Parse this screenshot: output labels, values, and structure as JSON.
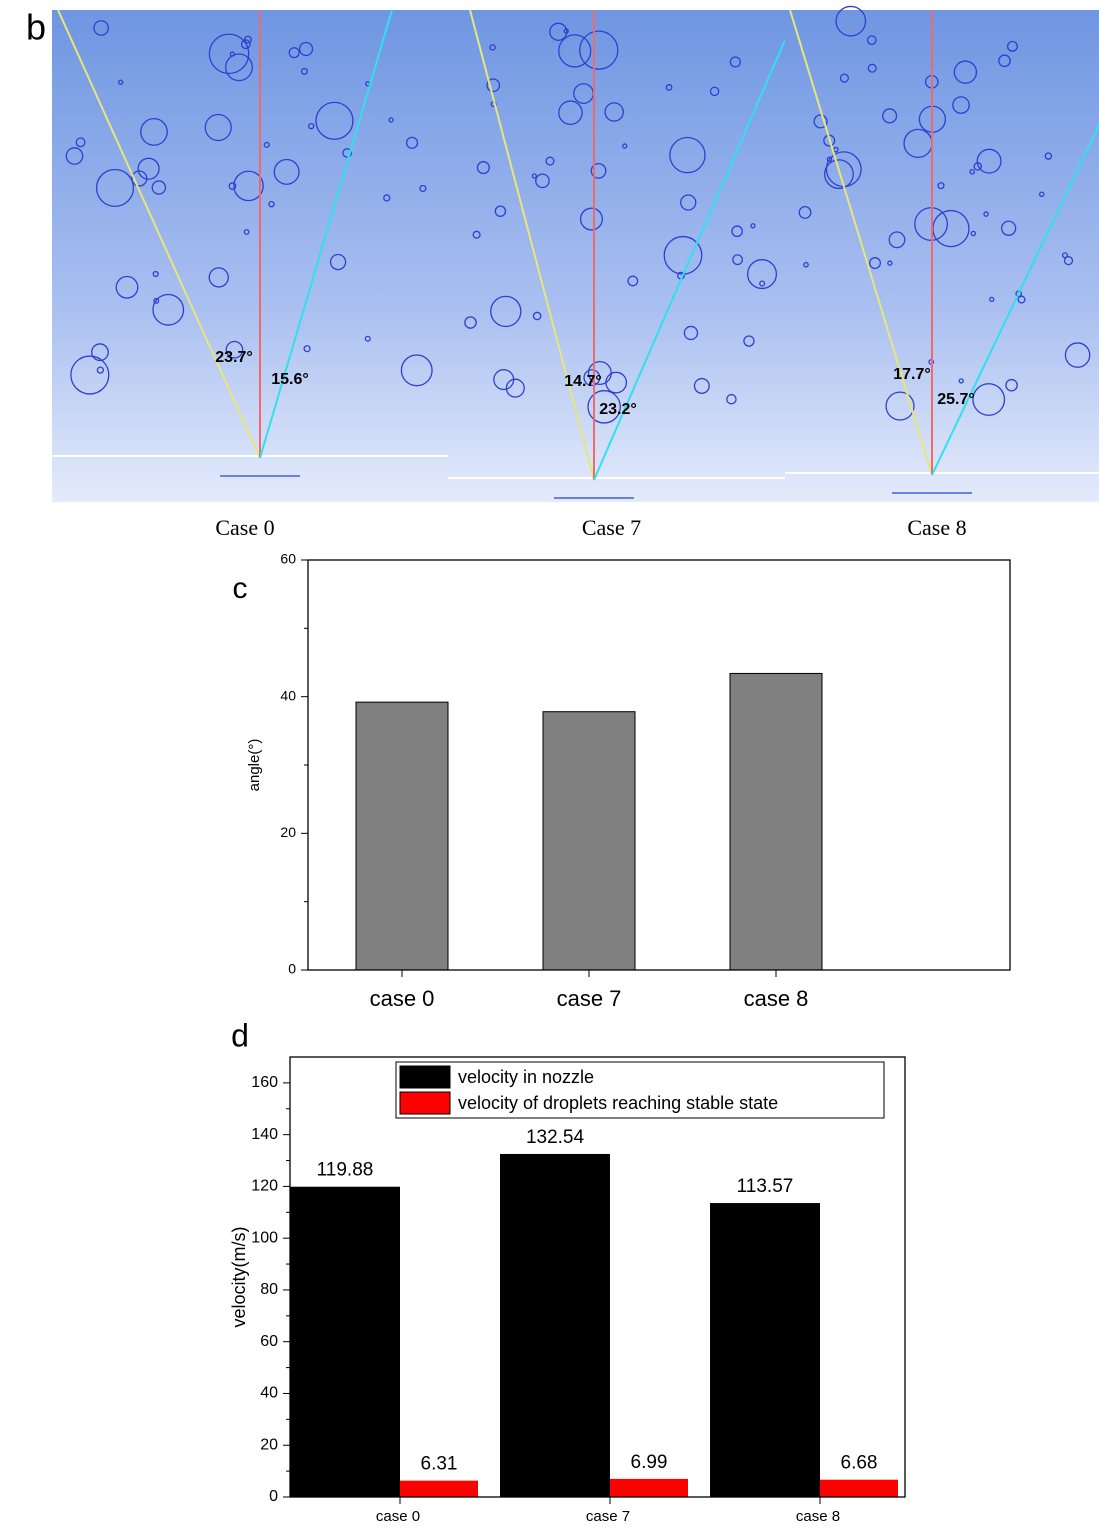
{
  "panel_b": {
    "label": "b",
    "images": [
      {
        "caption": "Case 0",
        "angles": [
          "23.7°",
          "15.6°"
        ]
      },
      {
        "caption": "Case 7",
        "angles": [
          "14.7°",
          "23.2°"
        ]
      },
      {
        "caption": "Case 8",
        "angles": [
          "17.7°",
          "25.7°"
        ]
      }
    ]
  },
  "chart_data": [
    {
      "type": "bar",
      "panel_label": "c",
      "y_label": "angle(°)",
      "categories": [
        "case 0",
        "case 7",
        "case 8"
      ],
      "values": [
        39.2,
        37.8,
        43.4
      ],
      "color": "#808080",
      "ylim": [
        0,
        60
      ],
      "yticks": [
        0,
        20,
        40,
        60
      ]
    },
    {
      "type": "grouped_bar",
      "panel_label": "d",
      "y_label": "velocity(m/s)",
      "categories": [
        "case 0",
        "case 7",
        "case 8"
      ],
      "series": [
        {
          "name": "velocity in nozzle",
          "color": "#000000",
          "values": [
            119.88,
            132.54,
            113.57
          ]
        },
        {
          "name": "velocity of droplets reaching stable state",
          "color": "#ff0000",
          "values": [
            6.31,
            6.99,
            6.68
          ]
        }
      ],
      "ylim": [
        0,
        170
      ],
      "yticks": [
        0,
        20,
        40,
        60,
        80,
        100,
        120,
        140,
        160
      ],
      "legend": "upper right"
    }
  ]
}
